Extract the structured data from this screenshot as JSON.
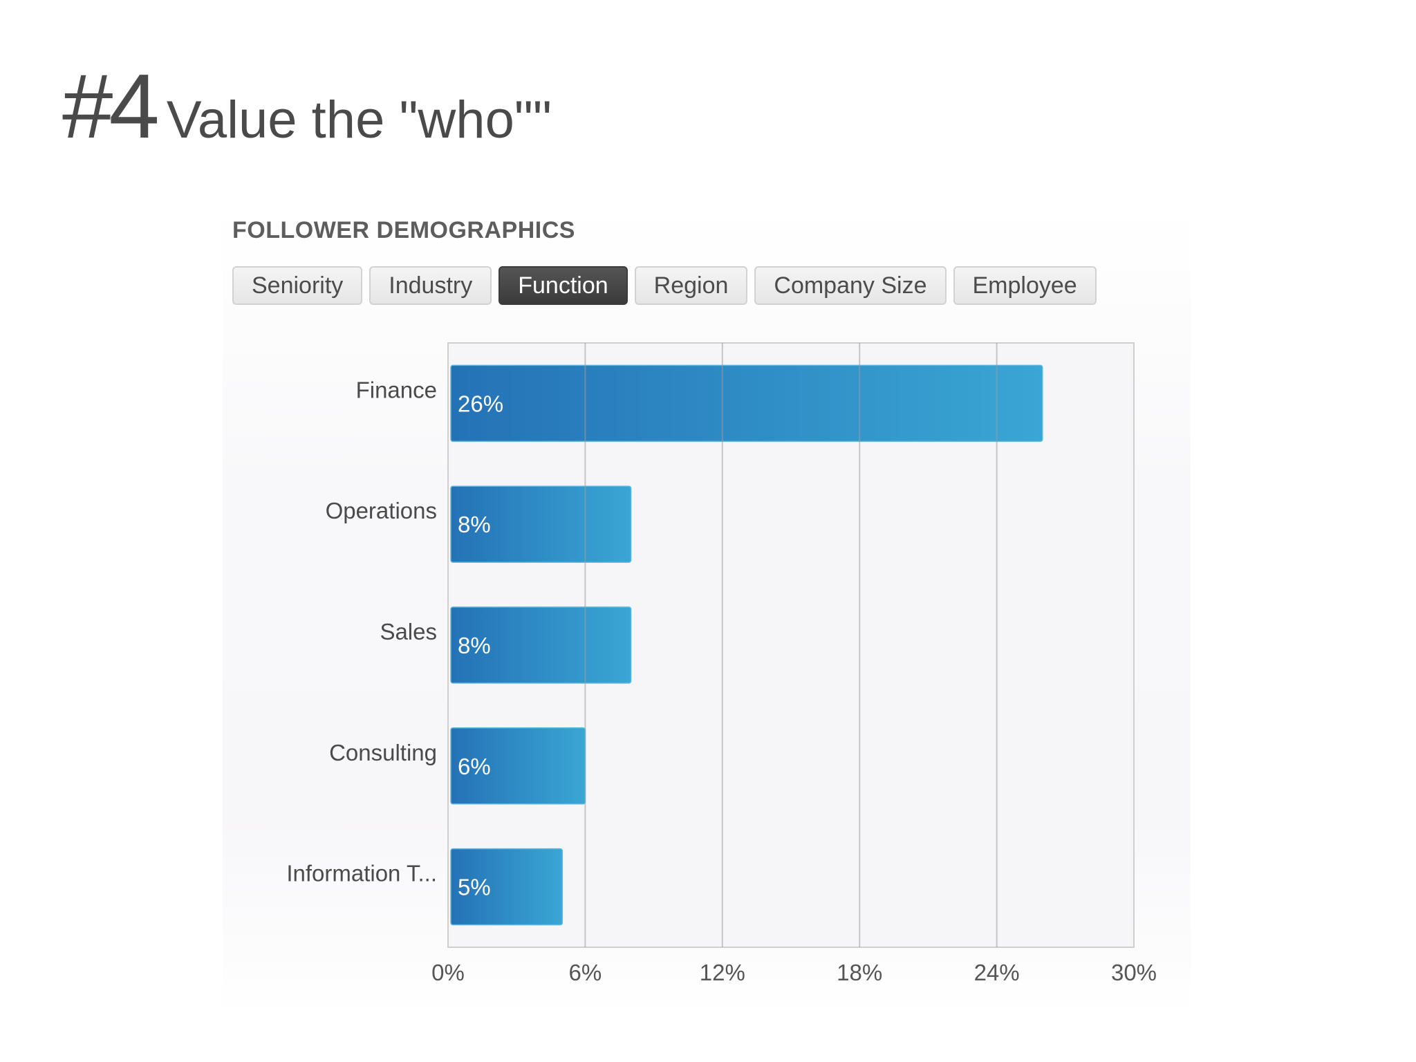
{
  "slide": {
    "number": "#4",
    "title": "Value the \"who\"\""
  },
  "section_heading": "FOLLOWER DEMOGRAPHICS",
  "tabs": [
    {
      "label": "Seniority",
      "active": false
    },
    {
      "label": "Industry",
      "active": false
    },
    {
      "label": "Function",
      "active": true
    },
    {
      "label": "Region",
      "active": false
    },
    {
      "label": "Company Size",
      "active": false
    },
    {
      "label": "Employee",
      "active": false
    }
  ],
  "colors": {
    "bar_start": "#2472b6",
    "bar_end": "#3aa6d4",
    "grid": "#cfcfcf",
    "active_tab": "#444444"
  },
  "chart_data": {
    "type": "bar",
    "orientation": "horizontal",
    "categories": [
      "Finance",
      "Operations",
      "Sales",
      "Consulting",
      "Information T..."
    ],
    "values": [
      26,
      8,
      8,
      6,
      5
    ],
    "value_labels": [
      "26%",
      "8%",
      "8%",
      "6%",
      "5%"
    ],
    "xlim": [
      0,
      30
    ],
    "x_ticks": [
      0,
      6,
      12,
      18,
      24,
      30
    ],
    "x_tick_labels": [
      "0%",
      "6%",
      "12%",
      "18%",
      "24%",
      "30%"
    ],
    "grid": true
  }
}
